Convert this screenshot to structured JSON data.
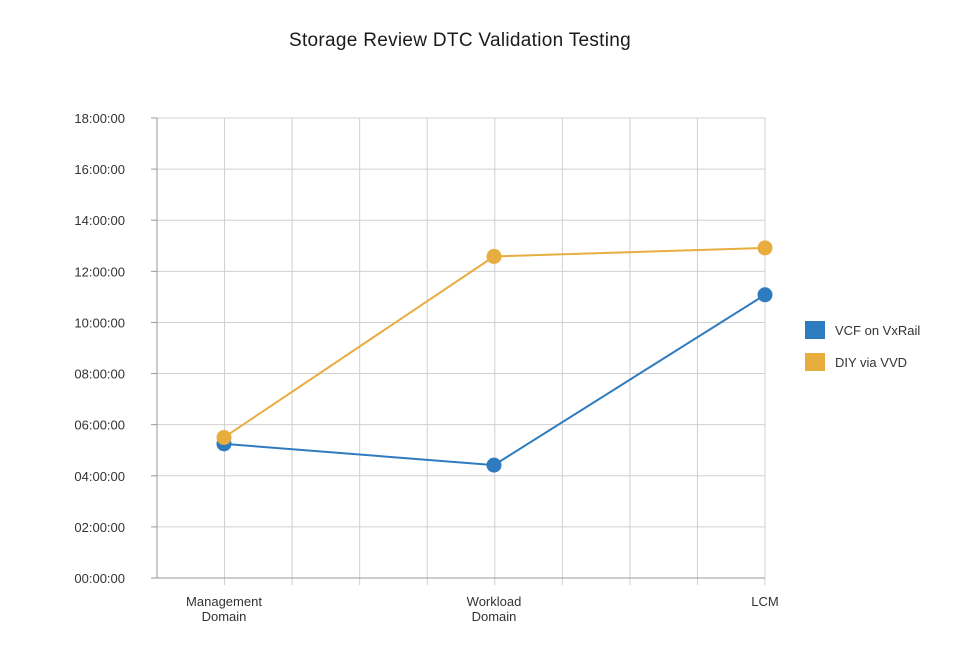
{
  "chart_data": {
    "type": "line",
    "title": "Storage Review DTC Validation Testing",
    "xlabel": "",
    "ylabel": "",
    "categories": [
      "Management Domain",
      "Workload Domain",
      "LCM"
    ],
    "category_lines": [
      [
        "Management",
        "Domain"
      ],
      [
        "Workload",
        "Domain"
      ],
      [
        "LCM"
      ]
    ],
    "y_ticks": [
      "00:00:00",
      "02:00:00",
      "04:00:00",
      "06:00:00",
      "08:00:00",
      "10:00:00",
      "12:00:00",
      "14:00:00",
      "16:00:00",
      "18:00:00"
    ],
    "ylim_hours": [
      0,
      18
    ],
    "grid": true,
    "legend_position": "right",
    "series": [
      {
        "name": "VCF on VxRail",
        "color": "#2f7bbf",
        "values": [
          "05:15:00",
          "04:25:00",
          "11:05:00"
        ]
      },
      {
        "name": "DIY via VVD",
        "color": "#e8ad3f",
        "values": [
          "05:30:00",
          "12:35:00",
          "12:55:00"
        ]
      }
    ]
  }
}
